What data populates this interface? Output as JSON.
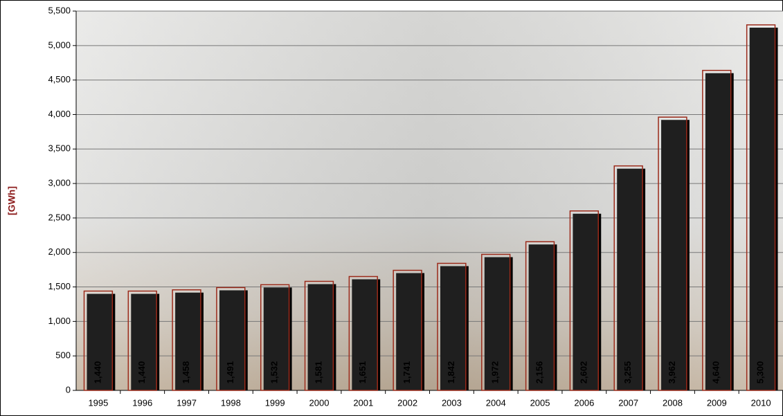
{
  "chart_data": {
    "type": "bar",
    "y_label": "[GWh]",
    "categories": [
      "1995",
      "1996",
      "1997",
      "1998",
      "1999",
      "2000",
      "2001",
      "2002",
      "2003",
      "2004",
      "2005",
      "2006",
      "2007",
      "2008",
      "2009",
      "2010"
    ],
    "values": [
      1440,
      1440,
      1458,
      1491,
      1532,
      1581,
      1651,
      1741,
      1842,
      1972,
      2156,
      2602,
      3255,
      3962,
      4640,
      5300
    ],
    "value_labels": [
      "1,440",
      "1,440",
      "1,458",
      "1,491",
      "1,532",
      "1,581",
      "1,651",
      "1,741",
      "1,842",
      "1,972",
      "2,156",
      "2,602",
      "3,255",
      "3,962",
      "4,640",
      "5,300"
    ],
    "color": "#9b2a1a",
    "shadow_color": "#000000",
    "ylim": [
      0,
      5500
    ],
    "yticks": [
      0,
      500,
      {
        "value": 1000,
        "label": "1,000"
      },
      {
        "value": 1500,
        "label": "1,500"
      },
      {
        "value": 2000,
        "label": "2,000"
      },
      {
        "value": 2500,
        "label": "2,500"
      },
      {
        "value": 3000,
        "label": "3,000"
      },
      {
        "value": 3500,
        "label": "3,500"
      },
      {
        "value": 4000,
        "label": "4,000"
      },
      {
        "value": 4500,
        "label": "4,500"
      },
      {
        "value": 5000,
        "label": "5,000"
      },
      {
        "value": 5500,
        "label": "5,500"
      }
    ],
    "grid": true
  }
}
